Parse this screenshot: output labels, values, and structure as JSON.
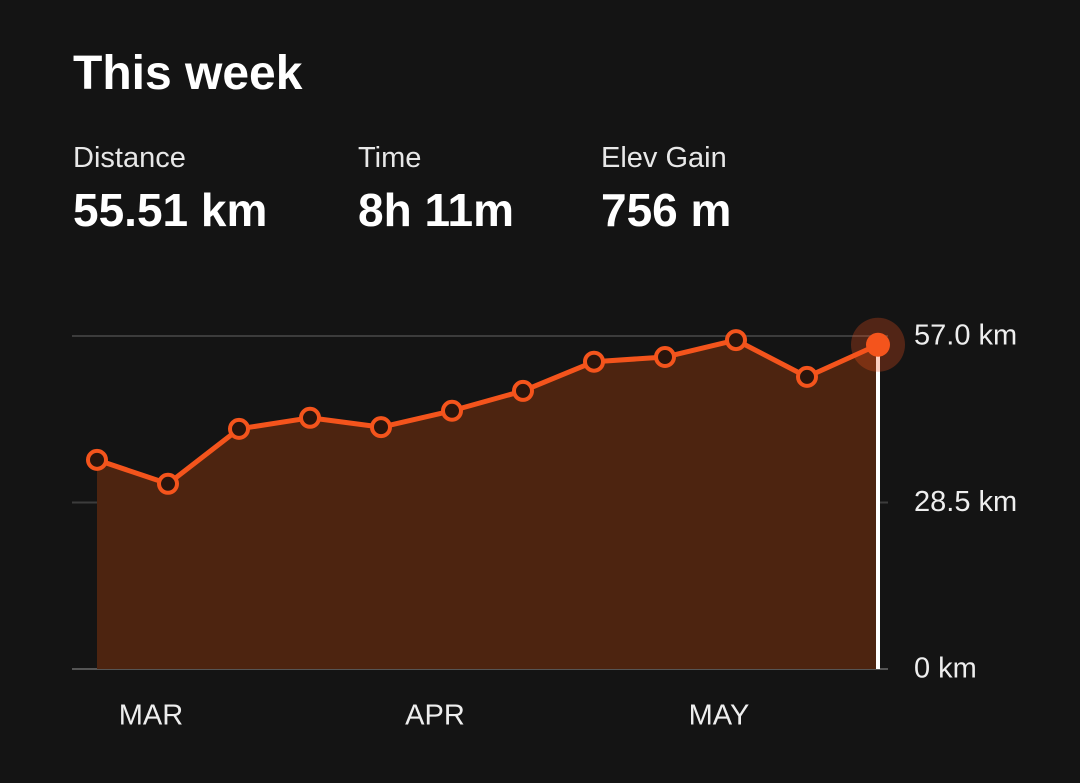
{
  "header": {
    "title": "This week"
  },
  "stats": [
    {
      "label": "Distance",
      "value": "55.51 km"
    },
    {
      "label": "Time",
      "value": "8h 11m"
    },
    {
      "label": "Elev Gain",
      "value": "756 m"
    }
  ],
  "chart_data": {
    "type": "area",
    "categories": [
      null,
      "MAR",
      null,
      null,
      null,
      "APR",
      null,
      null,
      null,
      "MAY",
      null,
      null
    ],
    "values": [
      35.8,
      31.7,
      41.1,
      43.0,
      41.4,
      44.2,
      47.6,
      52.6,
      53.4,
      56.3,
      50.0,
      55.5
    ],
    "color": "#f4541c",
    "ylim": [
      0,
      57
    ],
    "yticks": [
      {
        "value": 0,
        "label": "0 km"
      },
      {
        "value": 28.5,
        "label": "28.5 km"
      },
      {
        "value": 57,
        "label": "57.0 km"
      }
    ],
    "grid": true
  }
}
